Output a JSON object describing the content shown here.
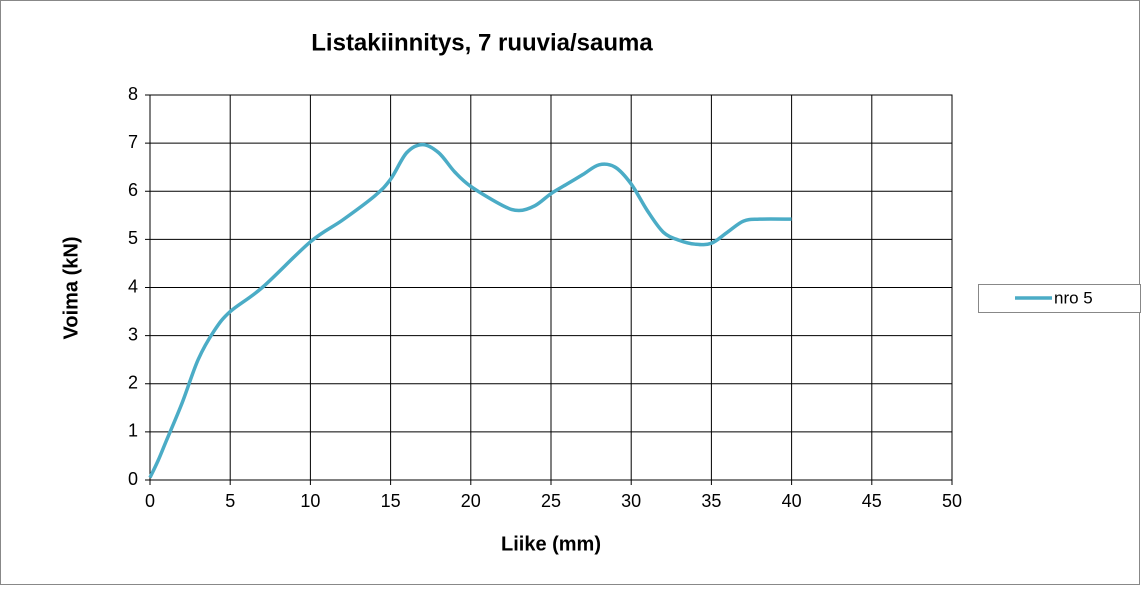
{
  "chart_data": {
    "type": "line",
    "title": "Listakiinnitys, 7 ruuvia/sauma",
    "x_label": "Liike (mm)",
    "y_label": "Voima (kN)",
    "x": [
      0,
      0.5,
      1,
      2,
      3,
      4,
      5,
      7,
      10,
      12,
      14,
      15,
      16,
      17,
      18,
      19,
      20,
      22,
      23,
      24,
      25,
      26,
      27,
      28,
      29,
      30,
      31,
      32,
      33,
      34,
      35,
      36,
      37,
      38,
      40
    ],
    "series": [
      {
        "name": "nro 5",
        "color": "#4bacc6",
        "values": [
          0.05,
          0.4,
          0.8,
          1.6,
          2.5,
          3.1,
          3.5,
          4.0,
          4.95,
          5.4,
          5.9,
          6.25,
          6.8,
          6.97,
          6.8,
          6.4,
          6.1,
          5.7,
          5.6,
          5.7,
          5.95,
          6.15,
          6.35,
          6.55,
          6.5,
          6.15,
          5.6,
          5.15,
          4.98,
          4.9,
          4.92,
          5.15,
          5.38,
          5.42,
          5.42
        ]
      }
    ],
    "xlim": [
      0,
      50
    ],
    "xticks": [
      0,
      5,
      10,
      15,
      20,
      25,
      30,
      35,
      40,
      45,
      50
    ],
    "ylim": [
      0,
      8
    ],
    "yticks": [
      0,
      1,
      2,
      3,
      4,
      5,
      6,
      7,
      8
    ],
    "grid": true,
    "legend": "right"
  }
}
